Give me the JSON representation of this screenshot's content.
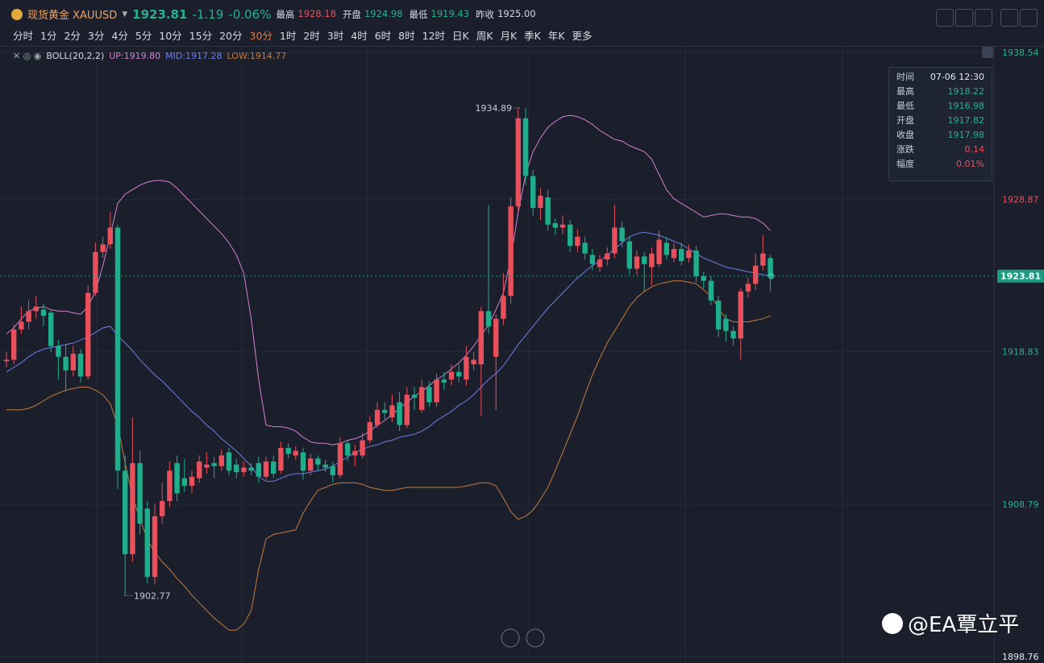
{
  "header": {
    "name": "现货黄金 XAUUSD",
    "price": 1923.81,
    "change": -1.19,
    "change_pct": "-0.06%",
    "stats": [
      {
        "label": "最高",
        "value": 1928.18,
        "color": "#e8505b"
      },
      {
        "label": "开盘",
        "value": 1924.98,
        "color": "#26b08f"
      },
      {
        "label": "最低",
        "value": 1919.43,
        "color": "#26b08f"
      },
      {
        "label": "昨收",
        "value": "1925.00",
        "color": "#d7dbe3"
      }
    ],
    "timeframes": [
      "分时",
      "1分",
      "2分",
      "3分",
      "4分",
      "5分",
      "10分",
      "15分",
      "20分",
      "30分",
      "1时",
      "2时",
      "3时",
      "4时",
      "6时",
      "8时",
      "12时",
      "日K",
      "周K",
      "月K",
      "季K",
      "年K",
      "更多"
    ],
    "active_timeframe": 9
  },
  "indicator": {
    "name": "BOLL(20,2,2)"
  },
  "tooltip": [
    {
      "label": "时间",
      "value": "07-06 12:30",
      "color": "#e6e9ef"
    },
    {
      "label": "最高",
      "value": "1918.22",
      "color": "#26b08f"
    },
    {
      "label": "最低",
      "value": "1916.98",
      "color": "#26b08f"
    },
    {
      "label": "开盘",
      "value": "1917.82",
      "color": "#26b08f"
    },
    {
      "label": "收盘",
      "value": "1917.98",
      "color": "#26b08f"
    },
    {
      "label": "涨跌",
      "value": "0.14",
      "color": "#e8505b"
    },
    {
      "label": "幅度",
      "value": "0.01%",
      "color": "#e8505b"
    }
  ],
  "watermark": "@EA覃立平",
  "chart_data": {
    "type": "candlestick",
    "up_color": "#e8505b",
    "down_color": "#1fae8c",
    "ylim": [
      1898.76,
      1938.54
    ],
    "yticks": [
      1898.76,
      1908.79,
      1918.83,
      1928.87,
      1938.54
    ],
    "current_price": 1923.81,
    "max_label": 1934.89,
    "min_label": 1902.77,
    "candles": {
      "open": [
        1918.2,
        1918.3,
        1920.3,
        1920.8,
        1921.5,
        1921.6,
        1921.4,
        1919.2,
        1918.5,
        1917.6,
        1918.7,
        1917.2,
        1922.7,
        1925.4,
        1925.9,
        1927.0,
        1911.0,
        1905.5,
        1911.5,
        1908.5,
        1904.0,
        1908.0,
        1909.0,
        1911.5,
        1910.5,
        1910.0,
        1910.5,
        1911.2,
        1911.5,
        1911.3,
        1912.2,
        1911.4,
        1910.9,
        1911.2,
        1911.5,
        1910.6,
        1911.6,
        1911.0,
        1912.5,
        1912.0,
        1912.2,
        1911.0,
        1911.8,
        1911.4,
        1911.3,
        1910.7,
        1912.8,
        1912.0,
        1912.0,
        1913.0,
        1914.0,
        1915.0,
        1914.5,
        1915.5,
        1914.0,
        1916.0,
        1915.0,
        1916.5,
        1915.5,
        1917.0,
        1917.0,
        1917.5,
        1917.0,
        1918.0,
        1918.0,
        1921.5,
        1918.5,
        1921.0,
        1922.5,
        1928.4,
        1934.2,
        1930.4,
        1928.3,
        1929.0,
        1927.3,
        1927.0,
        1927.2,
        1925.8,
        1926.0,
        1925.2,
        1924.4,
        1924.9,
        1925.3,
        1927.0,
        1926.1,
        1924.3,
        1925.1,
        1924.4,
        1924.6,
        1926.0,
        1925.0,
        1925.6,
        1925.0,
        1925.5,
        1923.8,
        1923.5,
        1922.2,
        1921.0,
        1920.2,
        1919.7,
        1922.8,
        1923.3,
        1924.5,
        1925.0
      ],
      "high": [
        1918.8,
        1920.6,
        1921.8,
        1922.2,
        1922.5,
        1922.0,
        1921.6,
        1919.6,
        1919.3,
        1919.2,
        1919.0,
        1923.2,
        1926.0,
        1926.4,
        1928.0,
        1927.2,
        1912.0,
        1914.5,
        1912.3,
        1909.0,
        1908.8,
        1910.2,
        1911.6,
        1912.0,
        1911.8,
        1911.0,
        1912.0,
        1912.2,
        1911.9,
        1912.4,
        1912.5,
        1911.8,
        1911.6,
        1911.5,
        1911.9,
        1911.9,
        1912.0,
        1912.9,
        1912.8,
        1912.6,
        1912.5,
        1912.1,
        1912.0,
        1911.7,
        1911.6,
        1913.2,
        1913.0,
        1912.7,
        1913.5,
        1914.6,
        1915.5,
        1915.5,
        1916.0,
        1916.2,
        1916.5,
        1916.5,
        1917.0,
        1916.9,
        1917.4,
        1917.5,
        1918.0,
        1918.0,
        1919.2,
        1918.8,
        1921.8,
        1928.5,
        1921.3,
        1924.0,
        1929.0,
        1934.89,
        1934.89,
        1930.8,
        1929.6,
        1929.5,
        1927.6,
        1927.8,
        1927.5,
        1926.9,
        1926.4,
        1925.6,
        1925.2,
        1925.7,
        1928.5,
        1927.4,
        1926.4,
        1925.5,
        1925.4,
        1925.7,
        1926.8,
        1926.4,
        1926.0,
        1926.0,
        1925.9,
        1925.8,
        1924.1,
        1923.8,
        1922.5,
        1921.3,
        1920.5,
        1923.0,
        1923.7,
        1925.3,
        1926.5,
        1925.2
      ],
      "low": [
        1917.8,
        1918.0,
        1920.0,
        1920.3,
        1921.0,
        1920.5,
        1918.8,
        1917.0,
        1916.2,
        1917.2,
        1916.8,
        1917.0,
        1922.5,
        1925.0,
        1925.6,
        1909.8,
        1902.77,
        1905.0,
        1906.8,
        1903.6,
        1903.5,
        1907.5,
        1908.6,
        1909.0,
        1909.6,
        1909.5,
        1910.2,
        1910.8,
        1910.5,
        1911.0,
        1910.7,
        1910.5,
        1910.6,
        1910.7,
        1910.2,
        1910.4,
        1910.5,
        1910.8,
        1911.8,
        1911.7,
        1910.4,
        1910.7,
        1911.0,
        1910.9,
        1910.2,
        1910.5,
        1911.6,
        1911.3,
        1911.8,
        1912.8,
        1913.8,
        1914.4,
        1914.2,
        1913.6,
        1913.8,
        1915.0,
        1914.8,
        1915.2,
        1915.2,
        1916.3,
        1916.6,
        1916.8,
        1916.6,
        1917.6,
        1914.6,
        1920.0,
        1915.0,
        1920.6,
        1922.0,
        1928.0,
        1929.8,
        1927.8,
        1927.5,
        1926.8,
        1926.5,
        1926.6,
        1925.4,
        1925.4,
        1924.9,
        1924.2,
        1924.1,
        1924.5,
        1925.0,
        1925.7,
        1923.9,
        1923.9,
        1922.8,
        1923.2,
        1924.4,
        1924.9,
        1924.7,
        1924.5,
        1924.7,
        1923.4,
        1923.0,
        1921.9,
        1919.8,
        1919.5,
        1919.2,
        1918.3,
        1922.4,
        1922.9,
        1924.2,
        1922.8
      ],
      "close": [
        1918.3,
        1920.3,
        1920.8,
        1921.5,
        1921.8,
        1921.2,
        1919.2,
        1918.5,
        1917.6,
        1918.7,
        1917.2,
        1922.7,
        1925.4,
        1925.9,
        1927.0,
        1911.0,
        1905.5,
        1911.5,
        1907.5,
        1904.0,
        1908.0,
        1909.0,
        1911.0,
        1909.5,
        1910.0,
        1910.6,
        1911.6,
        1911.4,
        1911.3,
        1912.0,
        1911.0,
        1910.9,
        1911.2,
        1911.0,
        1910.6,
        1911.6,
        1910.8,
        1912.5,
        1912.1,
        1912.3,
        1911.0,
        1911.8,
        1911.4,
        1911.2,
        1910.7,
        1912.8,
        1912.0,
        1912.3,
        1913.0,
        1914.2,
        1915.0,
        1914.8,
        1915.3,
        1914.0,
        1916.0,
        1915.8,
        1916.5,
        1915.5,
        1917.0,
        1916.8,
        1917.5,
        1917.2,
        1918.5,
        1918.3,
        1921.5,
        1920.5,
        1921.0,
        1922.5,
        1928.4,
        1934.2,
        1930.4,
        1928.3,
        1929.1,
        1927.2,
        1927.0,
        1927.2,
        1925.8,
        1926.4,
        1925.3,
        1924.6,
        1924.9,
        1925.3,
        1927.0,
        1926.1,
        1924.3,
        1925.1,
        1924.6,
        1925.3,
        1926.2,
        1925.2,
        1925.6,
        1924.8,
        1925.5,
        1923.8,
        1923.5,
        1922.2,
        1920.3,
        1920.2,
        1919.7,
        1922.8,
        1923.3,
        1924.5,
        1925.3,
        1923.81
      ]
    },
    "bands": [
      {
        "name": "UP",
        "legend_label": "UP:1919.80",
        "color": "#d47fd2",
        "values": [
          1920.0,
          1920.4,
          1921.0,
          1921.5,
          1921.7,
          1921.8,
          1921.6,
          1921.5,
          1921.5,
          1921.4,
          1921.3,
          1921.8,
          1922.8,
          1924.5,
          1926.5,
          1928.6,
          1929.2,
          1929.5,
          1929.8,
          1930.0,
          1930.1,
          1930.1,
          1930.0,
          1929.6,
          1929.1,
          1928.6,
          1928.1,
          1927.6,
          1927.1,
          1926.6,
          1926.0,
          1925.2,
          1924.0,
          1921.0,
          1917.0,
          1914.0,
          1913.9,
          1913.9,
          1913.8,
          1913.6,
          1913.2,
          1912.9,
          1912.8,
          1912.8,
          1912.7,
          1912.8,
          1913.0,
          1913.1,
          1913.3,
          1913.6,
          1914.0,
          1914.3,
          1914.7,
          1915.1,
          1915.5,
          1915.9,
          1916.2,
          1916.6,
          1917.0,
          1917.3,
          1917.7,
          1918.1,
          1918.6,
          1919.2,
          1919.9,
          1920.6,
          1921.6,
          1922.7,
          1925.0,
          1928.0,
          1930.5,
          1932.0,
          1932.9,
          1933.6,
          1934.0,
          1934.3,
          1934.4,
          1934.3,
          1934.1,
          1933.8,
          1933.4,
          1933.1,
          1932.8,
          1932.7,
          1932.4,
          1932.2,
          1932.0,
          1931.5,
          1930.5,
          1929.5,
          1928.9,
          1928.6,
          1928.3,
          1928.0,
          1927.7,
          1927.8,
          1927.9,
          1927.9,
          1927.8,
          1927.7,
          1927.7,
          1927.6,
          1927.3,
          1926.8
        ]
      },
      {
        "name": "MID",
        "legend_label": "MID:1917.28",
        "color": "#6f7fe6",
        "values": [
          1917.5,
          1917.8,
          1918.1,
          1918.5,
          1918.8,
          1919.0,
          1919.1,
          1919.2,
          1919.3,
          1919.4,
          1919.6,
          1919.8,
          1920.1,
          1920.4,
          1920.5,
          1919.9,
          1919.4,
          1918.9,
          1918.3,
          1917.8,
          1917.3,
          1916.9,
          1916.4,
          1915.9,
          1915.4,
          1914.9,
          1914.5,
          1914.0,
          1913.6,
          1913.1,
          1912.7,
          1912.3,
          1911.8,
          1911.3,
          1910.6,
          1910.3,
          1910.3,
          1910.5,
          1910.7,
          1910.8,
          1910.8,
          1910.9,
          1911.0,
          1911.1,
          1911.3,
          1911.6,
          1911.9,
          1912.2,
          1912.4,
          1912.6,
          1912.7,
          1912.9,
          1913.0,
          1913.2,
          1913.3,
          1913.4,
          1913.6,
          1913.9,
          1914.3,
          1914.6,
          1914.9,
          1915.3,
          1915.6,
          1916.0,
          1916.5,
          1917.0,
          1917.4,
          1917.9,
          1918.6,
          1919.3,
          1919.9,
          1920.5,
          1921.1,
          1921.7,
          1922.2,
          1922.7,
          1923.2,
          1923.7,
          1924.1,
          1924.5,
          1924.8,
          1925.2,
          1925.6,
          1926.0,
          1926.4,
          1926.6,
          1926.7,
          1926.6,
          1926.5,
          1926.3,
          1926.1,
          1925.9,
          1925.6,
          1925.3,
          1925.0,
          1924.8,
          1924.6,
          1924.4,
          1924.3,
          1924.2,
          1924.1,
          1924.0,
          1923.9,
          1923.8
        ]
      },
      {
        "name": "LOW",
        "legend_label": "LOW:1914.77",
        "color": "#c27c40",
        "values": [
          1915.0,
          1915.0,
          1915.0,
          1915.1,
          1915.3,
          1915.6,
          1915.9,
          1916.1,
          1916.3,
          1916.4,
          1916.5,
          1916.5,
          1916.3,
          1916.0,
          1915.4,
          1914.0,
          1911.5,
          1909.3,
          1907.8,
          1906.5,
          1905.6,
          1905.0,
          1904.5,
          1903.9,
          1903.4,
          1902.8,
          1902.3,
          1901.8,
          1901.3,
          1900.9,
          1900.5,
          1900.5,
          1900.9,
          1901.8,
          1904.5,
          1906.5,
          1906.8,
          1906.9,
          1907.0,
          1907.1,
          1908.2,
          1909.0,
          1909.7,
          1909.9,
          1910.1,
          1910.2,
          1910.2,
          1910.2,
          1910.1,
          1909.9,
          1909.8,
          1909.7,
          1909.7,
          1909.8,
          1909.9,
          1909.9,
          1909.9,
          1909.9,
          1909.9,
          1909.9,
          1909.9,
          1909.9,
          1910.0,
          1910.1,
          1910.2,
          1910.2,
          1910.0,
          1909.2,
          1908.3,
          1907.8,
          1908.0,
          1908.4,
          1909.1,
          1909.9,
          1911.0,
          1912.2,
          1913.4,
          1914.6,
          1916.0,
          1917.3,
          1918.4,
          1919.4,
          1920.2,
          1921.0,
          1921.8,
          1922.4,
          1922.8,
          1923.1,
          1923.3,
          1923.4,
          1923.5,
          1923.5,
          1923.4,
          1923.3,
          1922.9,
          1922.5,
          1921.7,
          1921.0,
          1920.8,
          1920.8,
          1920.8,
          1920.9,
          1921.0,
          1921.2
        ]
      }
    ]
  }
}
